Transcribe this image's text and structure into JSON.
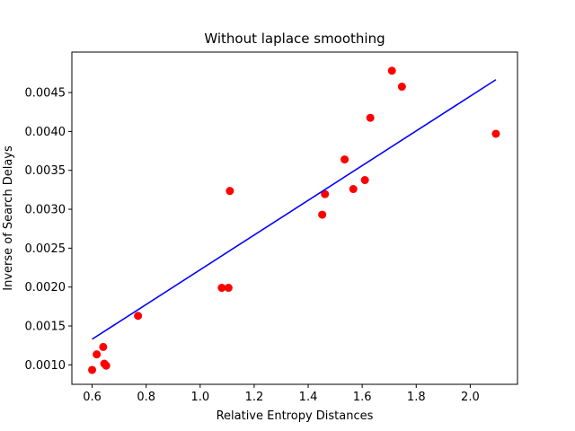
{
  "chart_data": {
    "type": "scatter",
    "title": "Without laplace smoothing",
    "xlabel": "Relative Entropy Distances",
    "ylabel": "Inverse of Search Delays",
    "xlim": [
      0.525,
      2.175
    ],
    "ylim": [
      0.00075,
      0.00502
    ],
    "xticks": [
      0.6,
      0.8,
      1.0,
      1.2,
      1.4,
      1.6,
      1.8,
      2.0
    ],
    "xtick_labels": [
      "0.6",
      "0.8",
      "1.0",
      "1.2",
      "1.4",
      "1.6",
      "1.8",
      "2.0"
    ],
    "yticks": [
      0.001,
      0.0015,
      0.002,
      0.0025,
      0.003,
      0.0035,
      0.004,
      0.0045
    ],
    "ytick_labels": [
      "0.0010",
      "0.0015",
      "0.0020",
      "0.0025",
      "0.0030",
      "0.0035",
      "0.0040",
      "0.0045"
    ],
    "grid": false,
    "series": [
      {
        "type": "scatter",
        "color": "#ff0000",
        "points": [
          [
            0.6,
            0.000935
          ],
          [
            0.617,
            0.001135
          ],
          [
            0.641,
            0.00123
          ],
          [
            0.645,
            0.001015
          ],
          [
            0.652,
            0.00099
          ],
          [
            0.77,
            0.00163
          ],
          [
            1.08,
            0.00199
          ],
          [
            1.105,
            0.00199
          ],
          [
            1.11,
            0.003235
          ],
          [
            1.452,
            0.00293
          ],
          [
            1.462,
            0.003195
          ],
          [
            1.535,
            0.00364
          ],
          [
            1.567,
            0.00326
          ],
          [
            1.61,
            0.003375
          ],
          [
            1.63,
            0.004175
          ],
          [
            1.71,
            0.00478
          ],
          [
            1.747,
            0.004575
          ],
          [
            2.095,
            0.00397
          ]
        ]
      },
      {
        "type": "line",
        "color": "#0000ff",
        "points": [
          [
            0.6,
            0.00133
          ],
          [
            2.095,
            0.004665
          ]
        ]
      }
    ]
  }
}
